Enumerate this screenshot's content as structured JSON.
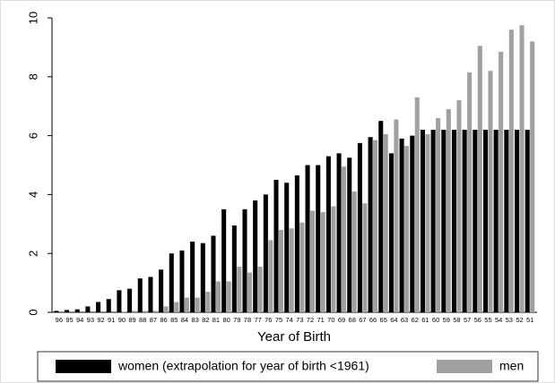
{
  "chart_data": {
    "type": "bar",
    "x_label": "Year of Birth",
    "categories": [
      "96",
      "95",
      "94",
      "93",
      "92",
      "91",
      "90",
      "89",
      "88",
      "87",
      "86",
      "85",
      "84",
      "83",
      "82",
      "81",
      "80",
      "79",
      "78",
      "77",
      "76",
      "75",
      "74",
      "73",
      "72",
      "71",
      "70",
      "69",
      "68",
      "67",
      "66",
      "65",
      "64",
      "63",
      "62",
      "61",
      "60",
      "59",
      "58",
      "57",
      "56",
      "55",
      "54",
      "53",
      "52",
      "51"
    ],
    "series": [
      {
        "name": "women (extrapolation for year of birth <1961)",
        "color": "#000000",
        "values": [
          0.05,
          0.08,
          0.1,
          0.2,
          0.35,
          0.45,
          0.75,
          0.8,
          1.15,
          1.2,
          1.45,
          2.0,
          2.1,
          2.4,
          2.35,
          2.6,
          3.5,
          2.95,
          3.5,
          3.8,
          4.0,
          4.5,
          4.4,
          4.65,
          5.0,
          5.0,
          5.3,
          5.4,
          5.25,
          5.75,
          5.95,
          6.5,
          5.4,
          5.9,
          6.0,
          6.2,
          6.2,
          6.2,
          6.2,
          6.2,
          6.2,
          6.2,
          6.2,
          6.2,
          6.2,
          6.2
        ]
      },
      {
        "name": "men",
        "color": "#a0a0a0",
        "values": [
          0,
          0,
          0,
          0,
          0,
          0,
          0.02,
          0.05,
          0.05,
          0.05,
          0.2,
          0.35,
          0.5,
          0.5,
          0.7,
          1.05,
          1.05,
          1.55,
          1.35,
          1.55,
          2.45,
          2.8,
          2.85,
          3.05,
          3.45,
          3.4,
          3.6,
          4.95,
          4.1,
          3.7,
          5.85,
          6.05,
          6.55,
          5.65,
          7.3,
          6.05,
          6.6,
          6.9,
          7.2,
          8.15,
          9.05,
          8.2,
          8.85,
          9.6,
          9.75,
          9.2
        ]
      }
    ],
    "ylim": [
      0,
      10
    ],
    "yticks": [
      0,
      2,
      4,
      6,
      8,
      10
    ],
    "grid": false,
    "legend": "bottom"
  }
}
